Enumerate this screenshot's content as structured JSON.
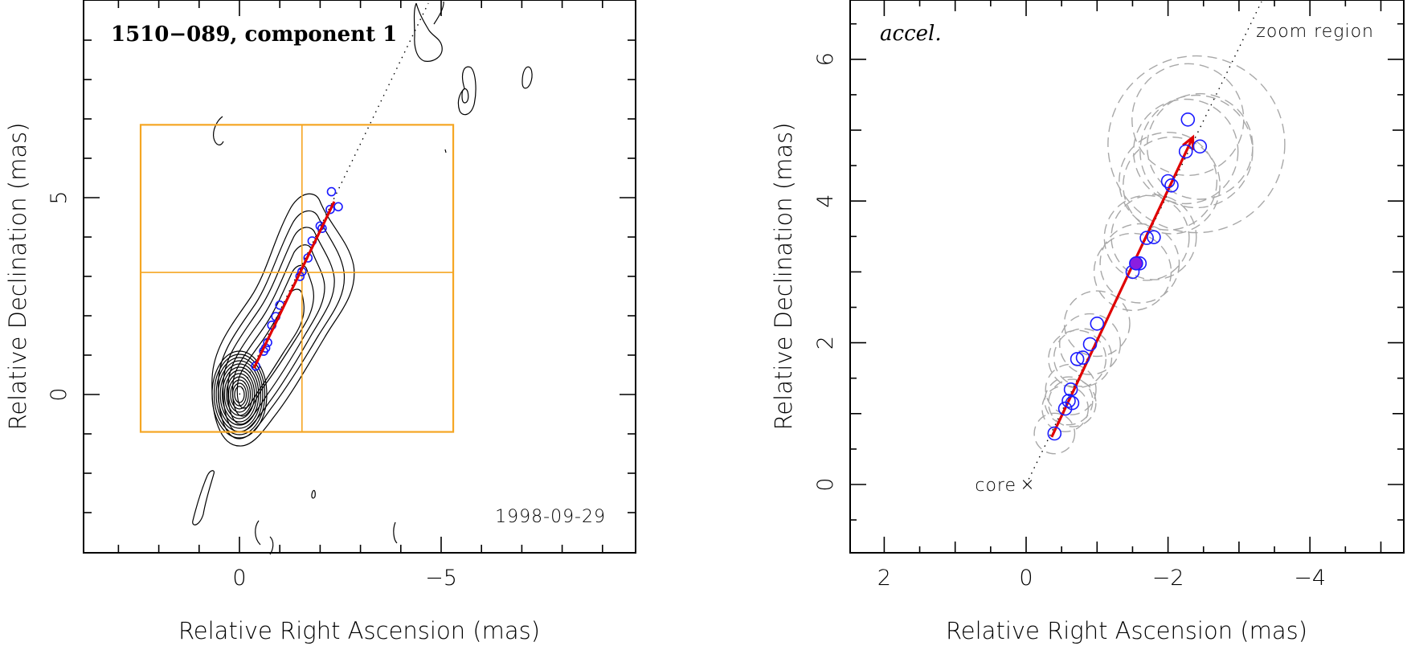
{
  "panels": {
    "left": {
      "title": "1510−089, component 1",
      "date": "1998-09-29",
      "xlabel": "Relative Right Ascension (mas)",
      "ylabel": "Relative Declination (mas)"
    },
    "right": {
      "fit_label": "accel.",
      "region_label": "zoom region",
      "core_label": "core",
      "xlabel": "Relative Right Ascension (mas)",
      "ylabel": "Relative Declination (mas)"
    }
  },
  "colors": {
    "contours": "#000000",
    "epoch_markers": "#1a1aff",
    "reference_marker": "#8a1ee0",
    "motion_vector": "#e00000",
    "zoom_box": "#f5a623",
    "error_ellipses": "#a8a8a8"
  },
  "chart_data": [
    {
      "type": "scatter",
      "title": "1510−089, component 1",
      "xlabel": "Relative Right Ascension (mas)",
      "ylabel": "Relative Declination (mas)",
      "xlim": [
        3.9,
        -9.9
      ],
      "ylim": [
        -4.0,
        9.8
      ],
      "xticks": [
        0,
        -5
      ],
      "yticks": [
        0,
        5
      ],
      "x_reversed": true,
      "annotation": "1998-09-29",
      "zoom_box": {
        "x": [
          2.45,
          -5.3
        ],
        "y": [
          -0.95,
          6.85
        ],
        "center": [
          -1.55,
          3.1
        ]
      },
      "trajectory": {
        "start": [
          -0.36,
          0.67
        ],
        "end": [
          -2.35,
          4.9
        ]
      },
      "series": [
        {
          "x": [
            -0.4,
            -0.6,
            -0.65,
            -0.7,
            -0.8,
            -0.9,
            -1.0,
            -1.5,
            -1.55,
            -1.7,
            -1.8,
            -2.05,
            -2.0,
            -2.25,
            -2.45,
            -2.28
          ],
          "y": [
            0.72,
            1.1,
            1.18,
            1.32,
            1.76,
            1.98,
            2.27,
            3.0,
            3.12,
            3.47,
            3.9,
            4.22,
            4.28,
            4.7,
            4.77,
            5.15
          ]
        }
      ]
    },
    {
      "type": "scatter",
      "xlabel": "Relative Right Ascension (mas)",
      "ylabel": "Relative Declination (mas)",
      "xlim": [
        2.45,
        -5.3
      ],
      "ylim": [
        -0.95,
        6.85
      ],
      "xticks": [
        2,
        0,
        -2,
        -4
      ],
      "yticks": [
        0,
        2,
        4,
        6
      ],
      "x_reversed": true,
      "annotation": "accel.",
      "reference_epoch": [
        -1.55,
        3.12
      ],
      "trajectory": {
        "start": [
          -0.36,
          0.67
        ],
        "end": [
          -2.35,
          4.9
        ]
      },
      "series": [
        {
          "x": [
            -0.4,
            -0.55,
            -0.6,
            -0.65,
            -0.63,
            -0.72,
            -0.8,
            -0.9,
            -1.0,
            -1.5,
            -1.7,
            -1.8,
            -1.6,
            -2.05,
            -2.0,
            -2.25,
            -2.45,
            -2.28
          ],
          "y": [
            0.72,
            1.07,
            1.18,
            1.15,
            1.34,
            1.77,
            1.79,
            1.98,
            2.27,
            3.0,
            3.48,
            3.49,
            3.12,
            4.22,
            4.28,
            4.7,
            4.77,
            5.15
          ]
        }
      ]
    }
  ]
}
